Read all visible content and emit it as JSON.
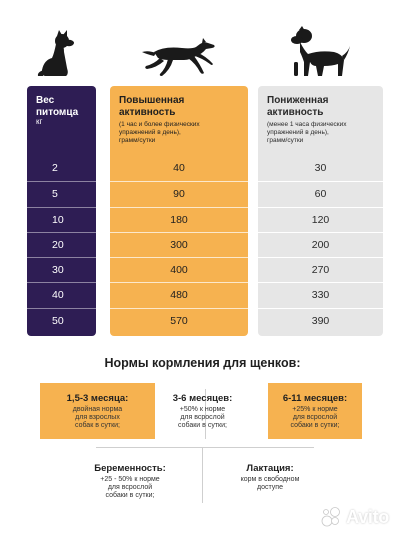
{
  "weight_column": {
    "title": "Вес\nпитомца",
    "unit": "кг",
    "values": [
      "2",
      "5",
      "10",
      "20",
      "30",
      "40",
      "50"
    ]
  },
  "high_activity_column": {
    "title": "Повышенная\nактивность",
    "note": "(1 час и более физических\nупражнений в день),\nграмм/сутки",
    "values": [
      "40",
      "90",
      "180",
      "300",
      "400",
      "480",
      "570"
    ]
  },
  "low_activity_column": {
    "title": "Пониженная\nактивность",
    "note": "(менее 1 часа физических\nупражнений в день),\nграмм/сутки",
    "values": [
      "30",
      "60",
      "120",
      "200",
      "270",
      "330",
      "390"
    ]
  },
  "puppy_section": {
    "title": "Нормы кормления для щенков:",
    "items": [
      {
        "title": "1,5-3 месяца:",
        "text": "двойная норма\nдля взрослых\nсобак в сутки;"
      },
      {
        "title": "3-6 месяцев:",
        "text": "+50% к норме\nдля всрослой\nсобаки в сутки;"
      },
      {
        "title": "6-11 месяцев:",
        "text": "+25% к норме\nдля всрослой\nсобаки в сутки;"
      },
      {
        "title": "Беременность:",
        "text": "+25 - 50% к норме\nдля всрослой\nсобаки в сутки;"
      },
      {
        "title": "Лактация:",
        "text": "корм в свободном\nдоступе"
      }
    ]
  },
  "icons": {
    "small_dog": "sitting-dog-icon",
    "medium_dog": "running-dog-icon",
    "large_dog": "large-dog-icon",
    "watermark": "avito-logo"
  },
  "colors": {
    "purple": "#2e1d54",
    "orange": "#f6b250",
    "gray": "#e6e6e6"
  },
  "watermark": {
    "text": "Avito"
  }
}
